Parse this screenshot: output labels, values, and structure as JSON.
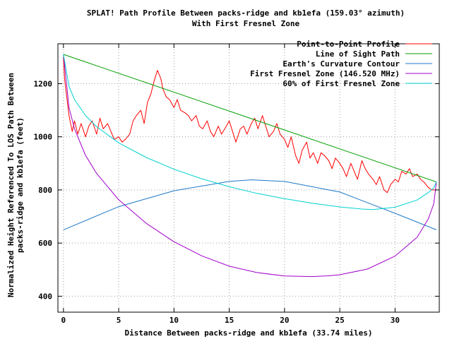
{
  "chart_data": {
    "type": "line",
    "title": "SPLAT! Path Profile Between packs-ridge and kb1efa (159.03° azimuth)",
    "subtitle": "With First Fresnel Zone",
    "xlabel": "Distance Between packs-ridge and kb1efa (33.74 miles)",
    "ylabel_lines": [
      "Normalized Height Referenced To LOS Path Between",
      "packs-ridge and kb1efa (feet)"
    ],
    "xlim": [
      -0.5,
      34
    ],
    "ylim": [
      340,
      1350
    ],
    "x_ticks": [
      0,
      5,
      10,
      15,
      20,
      25,
      30
    ],
    "y_ticks": [
      400,
      600,
      800,
      1000,
      1200
    ],
    "grid": true,
    "legend_position": "top-right",
    "series": [
      {
        "name": "Point-to-Point Profile",
        "color": "#ff0000",
        "x": [
          0,
          0.1,
          0.3,
          0.5,
          0.8,
          1.0,
          1.3,
          1.6,
          2.0,
          2.3,
          2.6,
          3.0,
          3.3,
          3.6,
          4.0,
          4.3,
          4.6,
          5.0,
          5.3,
          5.6,
          6.0,
          6.3,
          6.6,
          7.0,
          7.3,
          7.6,
          7.9,
          8.2,
          8.5,
          8.8,
          9.0,
          9.3,
          9.6,
          10.0,
          10.3,
          10.6,
          11.0,
          11.3,
          11.6,
          12.0,
          12.3,
          12.6,
          13.0,
          13.3,
          13.6,
          14.0,
          14.3,
          14.6,
          15.0,
          15.3,
          15.6,
          16.0,
          16.3,
          16.6,
          17.0,
          17.3,
          17.6,
          18.0,
          18.3,
          18.6,
          19.0,
          19.3,
          19.6,
          20.0,
          20.3,
          20.6,
          21.0,
          21.3,
          21.6,
          22.0,
          22.3,
          22.6,
          23.0,
          23.3,
          23.6,
          24.0,
          24.3,
          24.6,
          25.0,
          25.3,
          25.6,
          26.0,
          26.3,
          26.6,
          27.0,
          27.3,
          27.6,
          28.0,
          28.3,
          28.6,
          29.0,
          29.3,
          29.6,
          30.0,
          30.3,
          30.6,
          31.0,
          31.3,
          31.6,
          32.0,
          32.3,
          32.6,
          33.0,
          33.3,
          33.74
        ],
        "y": [
          1300,
          1220,
          1150,
          1080,
          1020,
          1060,
          1010,
          1050,
          1000,
          1040,
          1060,
          1010,
          1070,
          1030,
          1050,
          1020,
          990,
          1000,
          980,
          990,
          1010,
          1060,
          1080,
          1100,
          1050,
          1130,
          1160,
          1210,
          1250,
          1220,
          1180,
          1150,
          1140,
          1110,
          1140,
          1100,
          1090,
          1080,
          1060,
          1080,
          1040,
          1030,
          1060,
          1020,
          1000,
          1040,
          1010,
          1030,
          1060,
          1020,
          980,
          1030,
          1040,
          1010,
          1050,
          1070,
          1030,
          1080,
          1040,
          1000,
          1020,
          1050,
          1010,
          990,
          960,
          1000,
          930,
          900,
          950,
          980,
          920,
          940,
          900,
          940,
          930,
          910,
          880,
          920,
          900,
          880,
          850,
          900,
          870,
          840,
          910,
          880,
          860,
          840,
          820,
          850,
          800,
          790,
          820,
          840,
          830,
          870,
          860,
          880,
          850,
          860,
          840,
          830,
          810,
          800,
          800
        ]
      },
      {
        "name": "Line of Sight Path",
        "color": "#00a000",
        "x": [
          0,
          33.74
        ],
        "y": [
          1310,
          830
        ]
      },
      {
        "name": "Earth's Curvature Contour",
        "color": "#1e78c8",
        "x": [
          0,
          5,
          10,
          15,
          17,
          20,
          25,
          30,
          33.74
        ],
        "y": [
          650,
          737,
          797,
          832,
          838,
          832,
          792,
          712,
          650
        ]
      },
      {
        "name": "First Fresnel Zone (146.520 MHz)",
        "color": "#a000c8",
        "x": [
          0,
          0.5,
          1,
          2,
          3,
          5,
          7.5,
          10,
          12.5,
          15,
          17.5,
          20,
          22.5,
          24,
          25,
          27.5,
          30,
          32,
          33,
          33.5,
          33.74
        ],
        "y": [
          1310,
          1110,
          1030,
          930,
          862,
          763,
          674,
          605,
          552,
          513,
          489,
          476,
          474,
          477,
          481,
          502,
          551,
          622,
          690,
          748,
          830
        ]
      },
      {
        "name": "60% of First Fresnel Zone",
        "color": "#00d0d0",
        "x": [
          0,
          0.5,
          1,
          2,
          3,
          5,
          7.5,
          10,
          12.5,
          15,
          17.5,
          20,
          22.5,
          25,
          27,
          28,
          30,
          32,
          33,
          33.5,
          33.74
        ],
        "y": [
          1310,
          1190,
          1140,
          1080,
          1038,
          977,
          922,
          878,
          842,
          812,
          787,
          767,
          750,
          736,
          728,
          726,
          735,
          762,
          790,
          808,
          830
        ]
      }
    ]
  },
  "legend": {
    "items": [
      {
        "label": "Point-to-Point Profile",
        "color": "#ff0000"
      },
      {
        "label": "Line of Sight Path",
        "color": "#00a000"
      },
      {
        "label": "Earth's Curvature Contour",
        "color": "#1e78c8"
      },
      {
        "label": "First Fresnel Zone (146.520 MHz)",
        "color": "#a000c8"
      },
      {
        "label": "60% of First Fresnel Zone",
        "color": "#00d0d0"
      }
    ]
  }
}
